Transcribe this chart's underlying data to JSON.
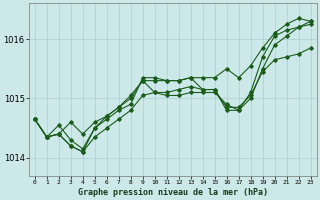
{
  "xlabel": "Graphe pression niveau de la mer (hPa)",
  "bg_color": "#cce8e8",
  "grid_color": "#aacfcf",
  "line_color": "#1a5c1a",
  "xlim_min": -0.5,
  "xlim_max": 23.5,
  "ylim_min": 1013.7,
  "ylim_max": 1016.6,
  "yticks": [
    1014,
    1015,
    1016
  ],
  "xticks": [
    0,
    1,
    2,
    3,
    4,
    5,
    6,
    7,
    8,
    9,
    10,
    11,
    12,
    13,
    14,
    15,
    16,
    17,
    18,
    19,
    20,
    21,
    22,
    23
  ],
  "series": [
    [
      1014.65,
      1014.35,
      1014.4,
      1014.6,
      1014.4,
      1014.6,
      1014.7,
      1014.85,
      1015.0,
      1015.3,
      1015.1,
      1015.1,
      1015.15,
      1015.2,
      1015.15,
      1015.15,
      1014.85,
      1014.85,
      1015.05,
      1015.45,
      1015.65,
      1015.7,
      1015.75,
      1015.85
    ],
    [
      1014.65,
      1014.35,
      1014.4,
      1014.2,
      1014.1,
      1014.35,
      1014.5,
      1014.65,
      1014.8,
      1015.05,
      1015.1,
      1015.05,
      1015.05,
      1015.1,
      1015.1,
      1015.1,
      1014.9,
      1014.8,
      1015.0,
      1015.5,
      1015.9,
      1016.05,
      1016.2,
      1016.25
    ],
    [
      1014.65,
      1014.35,
      1014.4,
      1014.2,
      1014.1,
      1014.5,
      1014.7,
      1014.85,
      1015.05,
      1015.3,
      1015.3,
      1015.3,
      1015.3,
      1015.35,
      1015.35,
      1015.35,
      1015.5,
      1015.35,
      1015.55,
      1015.85,
      1016.1,
      1016.25,
      1016.35,
      1016.3
    ],
    [
      1014.65,
      1014.35,
      1014.55,
      1014.3,
      1014.15,
      1014.5,
      1014.65,
      1014.8,
      1014.9,
      1015.35,
      1015.35,
      1015.3,
      1015.3,
      1015.35,
      1015.15,
      1015.15,
      1014.8,
      1014.8,
      1015.1,
      1015.7,
      1016.05,
      1016.15,
      1016.2,
      1016.3
    ]
  ]
}
